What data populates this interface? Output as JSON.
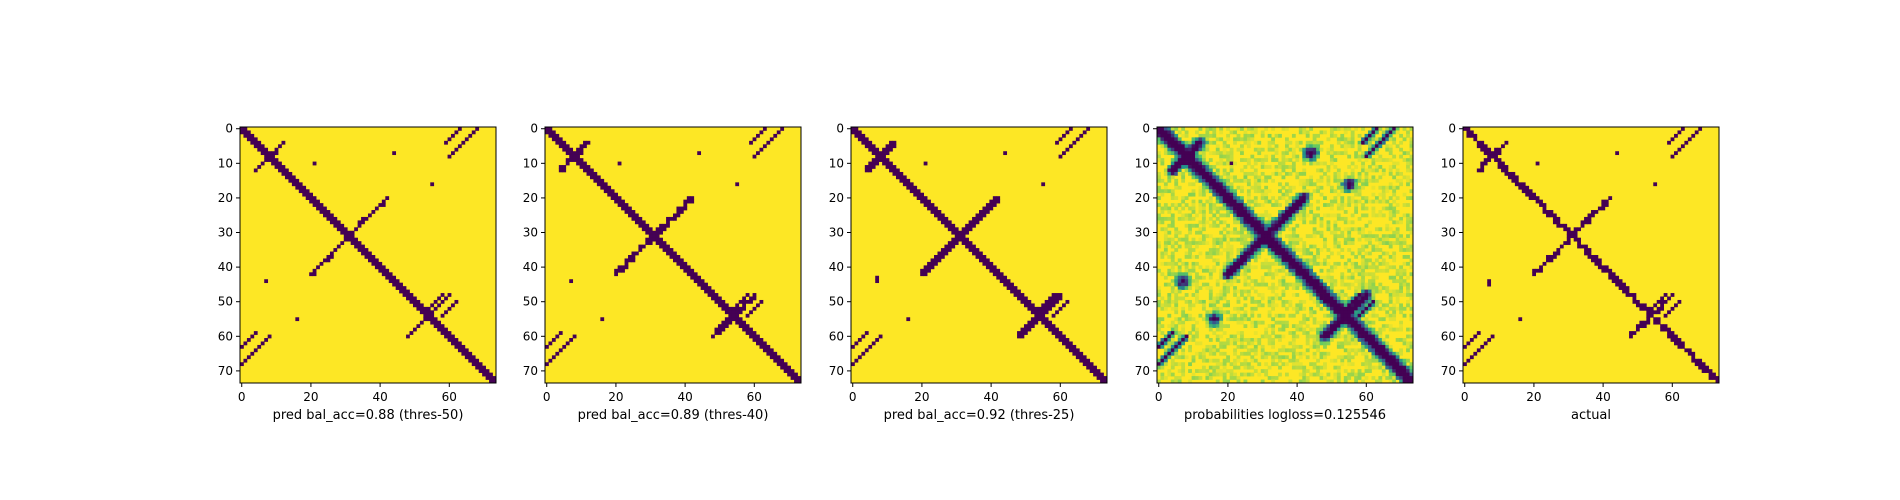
{
  "chart_data": [
    {
      "type": "heatmap",
      "variant": "binary",
      "title": "",
      "xlabel": "pred bal_acc=0.88 (thres-50)",
      "ylabel": "",
      "xlim": [
        0,
        73
      ],
      "ylim": [
        73,
        0
      ],
      "x_ticks": [
        "0",
        "20",
        "40",
        "60"
      ],
      "y_ticks": [
        "0",
        "10",
        "20",
        "30",
        "40",
        "50",
        "60",
        "70"
      ],
      "n": 74,
      "blob_scale": 1.0,
      "colormap": {
        "low": "#440154",
        "high": "#fde725"
      }
    },
    {
      "type": "heatmap",
      "variant": "binary",
      "title": "",
      "xlabel": "pred bal_acc=0.89 (thres-40)",
      "ylabel": "",
      "xlim": [
        0,
        73
      ],
      "ylim": [
        73,
        0
      ],
      "x_ticks": [
        "0",
        "20",
        "40",
        "60"
      ],
      "y_ticks": [
        "0",
        "10",
        "20",
        "30",
        "40",
        "50",
        "60",
        "70"
      ],
      "n": 74,
      "blob_scale": 1.12,
      "colormap": {
        "low": "#440154",
        "high": "#fde725"
      }
    },
    {
      "type": "heatmap",
      "variant": "binary",
      "title": "",
      "xlabel": "pred bal_acc=0.92 (thres-25)",
      "ylabel": "",
      "xlim": [
        0,
        73
      ],
      "ylim": [
        73,
        0
      ],
      "x_ticks": [
        "0",
        "20",
        "40",
        "60"
      ],
      "y_ticks": [
        "0",
        "10",
        "20",
        "30",
        "40",
        "50",
        "60",
        "70"
      ],
      "n": 74,
      "blob_scale": 1.25,
      "colormap": {
        "low": "#440154",
        "high": "#fde725"
      }
    },
    {
      "type": "heatmap",
      "variant": "probability",
      "title": "",
      "xlabel": "probabilities logloss=0.125546",
      "ylabel": "",
      "xlim": [
        0,
        73
      ],
      "ylim": [
        73,
        0
      ],
      "x_ticks": [
        "0",
        "20",
        "40",
        "60"
      ],
      "y_ticks": [
        "0",
        "10",
        "20",
        "30",
        "40",
        "50",
        "60",
        "70"
      ],
      "n": 74,
      "blob_scale": 1.2,
      "colormap": {
        "low": "#440154",
        "mid": "#21918c",
        "high": "#fde725"
      }
    },
    {
      "type": "heatmap",
      "variant": "actual",
      "title": "",
      "xlabel": "actual",
      "ylabel": "",
      "xlim": [
        0,
        73
      ],
      "ylim": [
        73,
        0
      ],
      "x_ticks": [
        "0",
        "20",
        "40",
        "60"
      ],
      "y_ticks": [
        "0",
        "10",
        "20",
        "30",
        "40",
        "50",
        "60",
        "70"
      ],
      "n": 74,
      "blob_scale": 1.0,
      "colormap": {
        "low": "#440154",
        "high": "#fde725"
      }
    }
  ]
}
